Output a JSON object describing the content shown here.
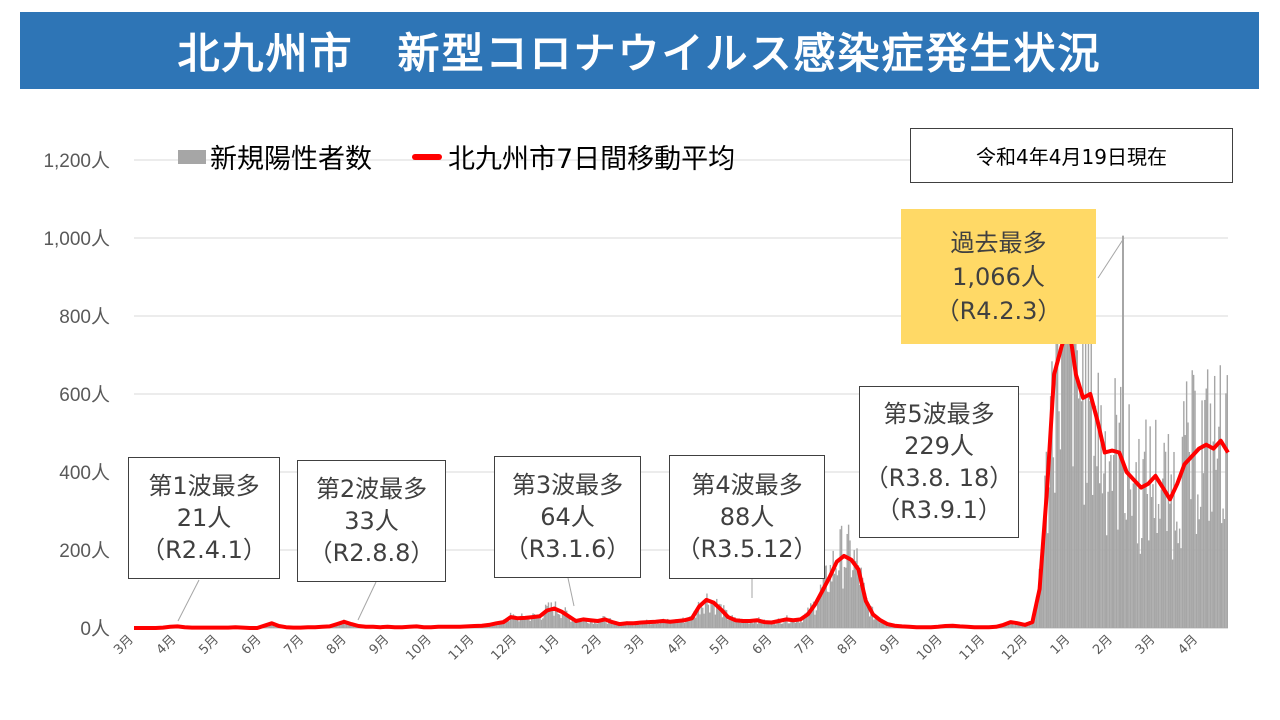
{
  "title": "北九州市　新型コロナウイルス感染症発生状況",
  "legend": {
    "bars": "新規陽性者数",
    "line": "北九州市7日間移動平均"
  },
  "as_of": "令和4年4月19日現在",
  "colors": {
    "banner": "#2e75b6",
    "bars": "#a6a6a6",
    "line": "#ff0000",
    "peak_box": "#ffd966"
  },
  "callouts": {
    "wave1": {
      "title": "第1波最多",
      "value": "21人",
      "date": "（R2.4.1）"
    },
    "wave2": {
      "title": "第2波最多",
      "value": "33人",
      "date": "（R2.8.8）"
    },
    "wave3": {
      "title": "第3波最多",
      "value": "64人",
      "date": "（R3.1.6）"
    },
    "wave4": {
      "title": "第4波最多",
      "value": "88人",
      "date": "（R3.5.12）"
    },
    "wave5": {
      "title": "第5波最多",
      "value": "229人",
      "date1": "（R3.8. 18）",
      "date2": "（R3.9.1）"
    },
    "peak": {
      "title": "過去最多",
      "value": "1,066人",
      "date": "（R4.2.3）"
    }
  },
  "chart_data": {
    "type": "bar",
    "y_ticks": [
      "0人",
      "200人",
      "400人",
      "600人",
      "800人",
      "1,000人",
      "1,200人"
    ],
    "ylim": [
      0,
      1200
    ],
    "x_ticks": [
      "3月",
      "4月",
      "5月",
      "6月",
      "7月",
      "8月",
      "9月",
      "10月",
      "11月",
      "12月",
      "1月",
      "2月",
      "3月",
      "4月",
      "5月",
      "6月",
      "7月",
      "8月",
      "9月",
      "10月",
      "11月",
      "12月",
      "1月",
      "2月",
      "3月",
      "4月"
    ],
    "series": [
      {
        "name": "新規陽性者数",
        "type": "bar"
      },
      {
        "name": "北九州市7日間移動平均",
        "type": "line"
      }
    ],
    "approx_weekly_avg": [
      0,
      0,
      0,
      0,
      1,
      3,
      4,
      2,
      1,
      1,
      1,
      1,
      1,
      1,
      2,
      1,
      0,
      0,
      6,
      12,
      5,
      2,
      1,
      1,
      2,
      2,
      3,
      4,
      10,
      16,
      10,
      5,
      3,
      3,
      2,
      3,
      2,
      2,
      3,
      4,
      2,
      2,
      3,
      3,
      3,
      3,
      4,
      5,
      6,
      8,
      12,
      15,
      28,
      25,
      26,
      28,
      30,
      45,
      50,
      42,
      30,
      18,
      22,
      20,
      18,
      22,
      15,
      10,
      12,
      12,
      14,
      15,
      16,
      18,
      16,
      18,
      20,
      25,
      55,
      72,
      65,
      48,
      28,
      20,
      18,
      18,
      20,
      15,
      14,
      18,
      22,
      20,
      22,
      35,
      60,
      95,
      130,
      170,
      185,
      175,
      150,
      70,
      35,
      20,
      10,
      6,
      4,
      3,
      2,
      2,
      2,
      3,
      5,
      6,
      4,
      3,
      2,
      2,
      2,
      3,
      8,
      15,
      12,
      8,
      15,
      100,
      350,
      650,
      720,
      780,
      650,
      590,
      600,
      530,
      450,
      455,
      450,
      400,
      380,
      360,
      370,
      390,
      360,
      330,
      370,
      420,
      440,
      460,
      470,
      460,
      480,
      450
    ],
    "annotations": [
      {
        "label": "第1波最多",
        "value": 21,
        "date": "R2.4.1"
      },
      {
        "label": "第2波最多",
        "value": 33,
        "date": "R2.8.8"
      },
      {
        "label": "第3波最多",
        "value": 64,
        "date": "R3.1.6"
      },
      {
        "label": "第4波最多",
        "value": 88,
        "date": "R3.5.12"
      },
      {
        "label": "第5波最多",
        "value": 229,
        "date": "R3.8.18 / R3.9.1"
      },
      {
        "label": "過去最多",
        "value": 1066,
        "date": "R4.2.3"
      }
    ]
  }
}
